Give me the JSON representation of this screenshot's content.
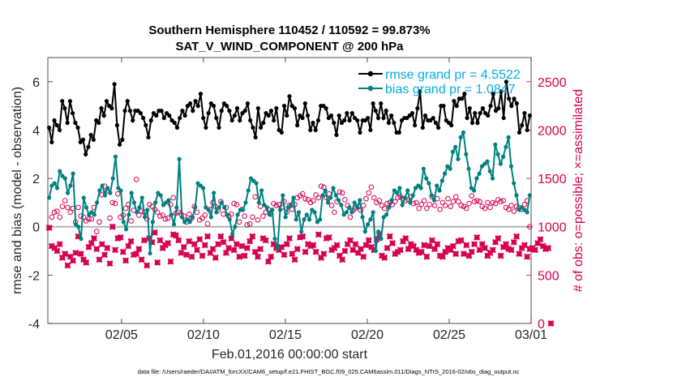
{
  "chart_data": {
    "type": "line",
    "title_line1": "Southern Hemisphere 110452 / 110592 = 99.873%",
    "title_line2": "SAT_V_WIND_COMPONENT @ 200 hPa",
    "xlabel": "Feb.01,2016 00:00:00 start",
    "ylabel_left": "rmse and bias (model - observation)",
    "ylabel_right": "# of obs: o=possible; ×=assimilated",
    "footer": "data file: /Users/raeder/DAI/ATM_forcXX/CAM6_setup/f.e21.FHIST_BGC.f09_025.CAM6assim.011/Diags_NTrS_2016-02/obs_diag_output.nc",
    "x_ticks": [
      {
        "day": 4.5,
        "label": "02/05"
      },
      {
        "day": 9.5,
        "label": "02/10"
      },
      {
        "day": 14.5,
        "label": "02/15"
      },
      {
        "day": 19.5,
        "label": "02/20"
      },
      {
        "day": 24.5,
        "label": "02/25"
      },
      {
        "day": 29.5,
        "label": "03/01"
      }
    ],
    "xlim": [
      0,
      29.5
    ],
    "ylim_left": [
      -4,
      7
    ],
    "ylim_right": [
      0,
      2750
    ],
    "y_ticks_left": [
      "-4",
      "-2",
      "0",
      "2",
      "4",
      "6"
    ],
    "y_ticks_right": [
      "0",
      "500",
      "1000",
      "1500",
      "2000",
      "2500"
    ],
    "colors": {
      "rmse": "#000000",
      "bias": "#008080",
      "obs": "#d6004f",
      "legend_text": "#00aee8",
      "zero_line": "#b3b3b3"
    },
    "legend": {
      "rmse": "rmse grand pr = 4.5522",
      "bias": "bias grand pr = 1.0847"
    },
    "rmse": [
      4.1,
      3.5,
      4.4,
      4.2,
      4.0,
      5.2,
      4.9,
      4.3,
      5.2,
      4.7,
      4.3,
      4.1,
      3.5,
      3.6,
      3.0,
      3.3,
      3.8,
      3.6,
      4.4,
      4.3,
      4.9,
      4.6,
      5.2,
      5.0,
      4.9,
      5.9,
      4.2,
      3.4,
      3.6,
      4.8,
      5.2,
      4.8,
      4.4,
      4.8,
      4.8,
      4.7,
      4.5,
      4.2,
      3.7,
      4.4,
      4.7,
      4.6,
      4.8,
      4.8,
      4.5,
      4.7,
      4.6,
      4.4,
      4.3,
      4.1,
      4.5,
      4.8,
      4.6,
      5.0,
      5.1,
      4.8,
      5.2,
      5.0,
      5.5,
      4.5,
      4.1,
      4.7,
      5.1,
      5.0,
      4.5,
      4.1,
      4.8,
      5.1,
      5.0,
      4.8,
      4.4,
      4.6,
      4.9,
      4.4,
      4.7,
      4.8,
      5.1,
      4.4,
      4.1,
      3.7,
      4.9,
      4.1,
      4.3,
      4.7,
      4.6,
      4.8,
      4.4,
      4.9,
      4.0,
      3.9,
      5.0,
      4.6,
      5.4,
      5.0,
      4.9,
      4.2,
      4.6,
      4.5,
      5.1,
      4.6,
      4.0,
      4.3,
      4.0,
      4.4,
      5.0,
      5.0,
      4.9,
      4.5,
      4.6,
      4.3,
      3.8,
      4.6,
      4.3,
      4.4,
      4.7,
      4.4,
      4.7,
      4.5,
      4.4,
      3.9,
      4.4,
      4.4,
      4.5,
      4.0,
      5.1,
      4.8,
      4.5,
      5.1,
      4.5,
      4.8,
      4.3,
      4.6,
      4.3,
      3.9,
      3.9,
      4.4,
      4.5,
      4.5,
      4.6,
      4.7,
      4.2,
      4.9,
      5.6,
      4.1,
      4.6,
      4.4,
      4.4,
      4.5,
      4.3,
      4.1,
      5.0,
      5.0,
      4.4,
      4.3,
      4.2,
      5.2,
      5.0,
      5.3,
      5.3,
      5.5,
      4.5,
      4.9,
      4.3,
      4.7,
      4.3,
      4.7,
      4.9,
      4.7,
      4.6,
      5.0,
      5.5,
      4.8,
      4.9,
      5.6,
      4.5,
      6.0,
      5.3,
      5.0,
      5.3,
      5.1,
      3.9,
      4.2,
      4.7,
      4.0,
      4.6
    ],
    "bias": [
      1.2,
      1.7,
      1.8,
      1.6,
      2.3,
      2.1,
      2.0,
      1.4,
      1.7,
      2.2,
      0.1,
      0.0,
      -0.5,
      1.2,
      0.8,
      0.5,
      0.6,
      0.5,
      1.0,
      1.5,
      1.7,
      1.3,
      1.6,
      1.4,
      2.0,
      2.9,
      1.6,
      1.5,
      0.2,
      -0.1,
      0.5,
      1.4,
      1.0,
      0.6,
      0.8,
      1.2,
      0.4,
      0.7,
      -1.1,
      0.2,
      1.0,
      1.4,
      1.3,
      0.9,
      1.0,
      1.1,
      0.5,
      0.1,
      0.8,
      2.8,
      0.4,
      0.2,
      0.3,
      0.2,
      0.4,
      0.8,
      1.8,
      1.7,
      1.6,
      0.8,
      0.7,
      0.4,
      1.4,
      0.6,
      0.8,
      1.0,
      0.8,
      0.5,
      0.3,
      -0.3,
      0.0,
      0.5,
      0.7,
      0.7,
      1.0,
      1.5,
      2.0,
      1.9,
      1.8,
      1.0,
      1.5,
      0.9,
      0.8,
      0.5,
      0.7,
      -0.5,
      -0.9,
      0.7,
      1.3,
      0.4,
      0.8,
      0.9,
      1.2,
      0.3,
      0.6,
      -0.2,
      0.3,
      0.5,
      0.3,
      0.7,
      0.6,
      0.2,
      0.3,
      1.3,
      1.5,
      1.0,
      1.2,
      1.6,
      1.3,
      1.1,
      0.9,
      0.5,
      0.6,
      0.8,
      0.6,
      1.0,
      0.8,
      1.1,
      0.4,
      -0.2,
      0.1,
      0.3,
      0.6,
      -1.0,
      -0.2,
      -0.5,
      0.4,
      0.5,
      0.8,
      1.1,
      1.5,
      1.4,
      1.6,
      0.9,
      1.2,
      1.5,
      1.0,
      1.3,
      1.6,
      1.7,
      1.6,
      2.4,
      2.0,
      1.8,
      1.3,
      1.1,
      1.7,
      1.5,
      1.9,
      2.2,
      2.5,
      2.4,
      3.1,
      3.3,
      2.8,
      3.7,
      3.9,
      3.0,
      2.4,
      1.6,
      1.5,
      2.0,
      2.2,
      2.5,
      2.6,
      2.7,
      2.3,
      2.0,
      3.4,
      3.0,
      2.6,
      2.9,
      3.3,
      3.7,
      2.5,
      1.8,
      1.3,
      0.7,
      0.8,
      0.7,
      0.6,
      1.3
    ],
    "obs_possible": [
      990,
      1100,
      1150,
      1160,
      1100,
      1210,
      1270,
      1200,
      1150,
      1190,
      1050,
      1200,
      1110,
      1100,
      1060,
      1080,
      1080,
      1200,
      950,
      1050,
      1330,
      1420,
      1370,
      1090,
      1250,
      1240,
      1340,
      1100,
      1120,
      1190,
      1230,
      1060,
      1170,
      1490,
      1120,
      1160,
      1150,
      1080,
      1230,
      1210,
      1180,
      1150,
      1110,
      1120,
      1080,
      1090,
      1230,
      1300,
      1140,
      1150,
      1130,
      1110,
      1050,
      1130,
      1090,
      1210,
      1150,
      1070,
      1090,
      1120,
      1030,
      1180,
      1250,
      1210,
      1170,
      1260,
      1130,
      1200,
      1110,
      1130,
      1240,
      1230,
      1050,
      1180,
      1110,
      1020,
      1030,
      1100,
      1310,
      1070,
      1210,
      1110,
      1150,
      1180,
      1130,
      1240,
      1220,
      1230,
      1200,
      1260,
      1150,
      1220,
      1180,
      1230,
      1300,
      1320,
      1340,
      1290,
      1280,
      1250,
      1270,
      1330,
      1300,
      1420,
      1410,
      1300,
      1340,
      1220,
      1150,
      1260,
      1360,
      1350,
      1280,
      1220,
      1100,
      1170,
      1190,
      1210,
      1170,
      1220,
      1290,
      1350,
      1410,
      1300,
      1250,
      1270,
      1220,
      1190,
      1240,
      1250,
      1230,
      1260,
      1300,
      1310,
      1290,
      1270,
      1280,
      1310,
      1240,
      1250,
      1190,
      1230,
      1270,
      1190,
      1230,
      1310,
      1220,
      1290,
      1180,
      1250,
      1220,
      1290,
      1210,
      1260,
      1310,
      1260,
      1220,
      1210,
      1190,
      1240,
      1320,
      1260,
      1270,
      1260,
      1210,
      1190,
      1250,
      1200,
      1250,
      1240,
      1280,
      1260,
      1270,
      1200,
      1180,
      1220,
      1160,
      1210,
      1200,
      1180,
      1230,
      1270,
      1000
    ],
    "obs_assimilated": [
      990,
      800,
      780,
      750,
      820,
      680,
      720,
      600,
      690,
      650,
      730,
      900,
      720,
      660,
      630,
      790,
      830,
      880,
      770,
      660,
      820,
      710,
      780,
      620,
      1000,
      760,
      880,
      890,
      740,
      650,
      800,
      850,
      710,
      720,
      770,
      660,
      860,
      600,
      880,
      840,
      940,
      630,
      860,
      780,
      810,
      830,
      640,
      920,
      910,
      860,
      730,
      790,
      710,
      850,
      690,
      820,
      760,
      870,
      700,
      810,
      900,
      730,
      770,
      680,
      820,
      900,
      840,
      730,
      780,
      880,
      760,
      820,
      690,
      800,
      700,
      780,
      850,
      900,
      740,
      690,
      770,
      880,
      860,
      640,
      690,
      820,
      780,
      760,
      790,
      710,
      820,
      880,
      720,
      660,
      770,
      890,
      900,
      740,
      820,
      800,
      810,
      740,
      920,
      680,
      720,
      880,
      890,
      760,
      780,
      810,
      700,
      660,
      750,
      820,
      860,
      760,
      820,
      730,
      770,
      690,
      810,
      860,
      790,
      760,
      870,
      920,
      700,
      680,
      780,
      900,
      830,
      720,
      740,
      760,
      850,
      880,
      770,
      820,
      800,
      760,
      730,
      740,
      810,
      690,
      800,
      860,
      770,
      820,
      700,
      690,
      740,
      780,
      760,
      800,
      720,
      850,
      860,
      720,
      810,
      700,
      740,
      820,
      890,
      760,
      820,
      780,
      700,
      730,
      760,
      840,
      880,
      700,
      790,
      820,
      770,
      760,
      840,
      900,
      720,
      780,
      810,
      690,
      770,
      780,
      760,
      830,
      870,
      800,
      770,
      780,
      0
    ]
  }
}
